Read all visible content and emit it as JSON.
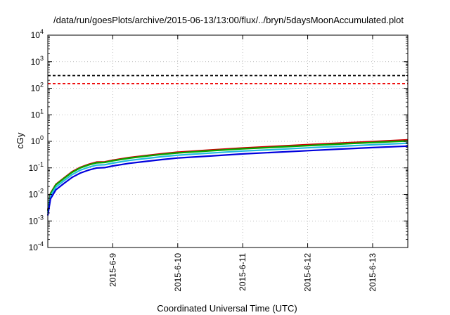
{
  "chart_data": {
    "type": "line",
    "title": "/data/run/goesPlots/archive/2015-06-13/13:00/flux/../bryn/5daysMoonAccumulated.plot",
    "xlabel": "Coordinated Universal Time (UTC)",
    "ylabel": "cGy",
    "yscale": "log",
    "ylim": [
      0.0001,
      10000
    ],
    "xlim": [
      "2015-06-08 00:00",
      "2015-06-13 13:00"
    ],
    "grid": true,
    "x_ticks": [
      "2015-6-9",
      "2015-6-10",
      "2015-6-11",
      "2015-6-12",
      "2015-6-13"
    ],
    "y_ticks": [
      {
        "value": 0.0001,
        "base": "10",
        "exp": "-4"
      },
      {
        "value": 0.001,
        "base": "10",
        "exp": "-3"
      },
      {
        "value": 0.01,
        "base": "10",
        "exp": "-2"
      },
      {
        "value": 0.1,
        "base": "10",
        "exp": "-1"
      },
      {
        "value": 1,
        "base": "10",
        "exp": "0"
      },
      {
        "value": 10,
        "base": "10",
        "exp": "1"
      },
      {
        "value": 100,
        "base": "10",
        "exp": "2"
      },
      {
        "value": 1000,
        "base": "10",
        "exp": "3"
      },
      {
        "value": 10000,
        "base": "10",
        "exp": "4"
      }
    ],
    "reference_lines": [
      {
        "value": 300,
        "color": "#000000",
        "style": "dashed"
      },
      {
        "value": 150,
        "color": "#ee0000",
        "style": "dashed"
      }
    ],
    "x": [
      "2015-06-08 00:00",
      "2015-06-08 01:00",
      "2015-06-08 03:00",
      "2015-06-08 06:00",
      "2015-06-08 09:00",
      "2015-06-08 12:00",
      "2015-06-08 15:00",
      "2015-06-08 18:00",
      "2015-06-08 21:00",
      "2015-06-09 00:00",
      "2015-06-09 06:00",
      "2015-06-09 12:00",
      "2015-06-09 18:00",
      "2015-06-10 00:00",
      "2015-06-10 12:00",
      "2015-06-11 00:00",
      "2015-06-11 12:00",
      "2015-06-12 00:00",
      "2015-06-12 12:00",
      "2015-06-13 00:00",
      "2015-06-13 13:00"
    ],
    "series": [
      {
        "color": "#cc0000",
        "values": [
          0.0025,
          0.011,
          0.024,
          0.042,
          0.072,
          0.105,
          0.135,
          0.165,
          0.168,
          0.195,
          0.245,
          0.29,
          0.34,
          0.39,
          0.47,
          0.56,
          0.65,
          0.75,
          0.86,
          0.98,
          1.14
        ]
      },
      {
        "color": "#00aa00",
        "values": [
          0.0024,
          0.0105,
          0.023,
          0.04,
          0.068,
          0.1,
          0.128,
          0.155,
          0.16,
          0.185,
          0.232,
          0.275,
          0.32,
          0.365,
          0.44,
          0.52,
          0.6,
          0.69,
          0.79,
          0.9,
          1.03
        ]
      },
      {
        "color": "#22bbdd",
        "values": [
          0.002,
          0.0088,
          0.019,
          0.033,
          0.056,
          0.082,
          0.105,
          0.127,
          0.131,
          0.151,
          0.19,
          0.225,
          0.263,
          0.3,
          0.36,
          0.43,
          0.49,
          0.57,
          0.65,
          0.74,
          0.85
        ]
      },
      {
        "color": "#0000dd",
        "values": [
          0.0016,
          0.0068,
          0.015,
          0.026,
          0.044,
          0.064,
          0.082,
          0.099,
          0.102,
          0.118,
          0.148,
          0.175,
          0.205,
          0.235,
          0.28,
          0.335,
          0.385,
          0.445,
          0.51,
          0.58,
          0.66
        ]
      }
    ]
  }
}
